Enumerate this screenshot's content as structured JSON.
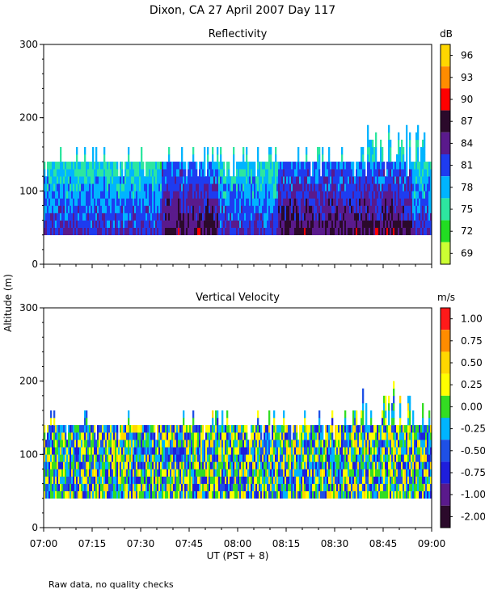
{
  "figure": {
    "title": "Dixon, CA 27 April 2007  Day 117",
    "xlabel": "UT  (PST + 8)",
    "ylabel": "Altitude (m)",
    "note": "Raw data, no quality checks"
  },
  "chart_data": [
    {
      "type": "heatmap",
      "title": "Reflectivity",
      "colorbar_unit": "dB",
      "colorbar_labels": [
        "96",
        "93",
        "90",
        "87",
        "84",
        "81",
        "78",
        "75",
        "72",
        "69"
      ],
      "colorbar_colors": [
        "#ffd700",
        "#ff8c00",
        "#ff0000",
        "#2b0a2b",
        "#5a1a8c",
        "#1e3cf0",
        "#00b4ff",
        "#2de6a0",
        "#22dd22",
        "#ccff33"
      ],
      "xlim": [
        "07:00",
        "09:00"
      ],
      "x_ticks": [
        "07:00",
        "07:15",
        "07:30",
        "07:45",
        "08:00",
        "08:15",
        "08:30",
        "08:45",
        "09:00"
      ],
      "ylim": [
        0,
        300
      ],
      "y_ticks": [
        "0",
        "100",
        "200",
        "300"
      ],
      "data_altitude_range_m": [
        40,
        140
      ],
      "max_echo_altitude_m": 200
    },
    {
      "type": "heatmap",
      "title": "Vertical Velocity",
      "colorbar_unit": "m/s",
      "colorbar_labels": [
        "1.00",
        "0.75",
        "0.50",
        "0.25",
        "0.00",
        "-0.25",
        "-0.50",
        "-0.75",
        "-1.00",
        "-2.00"
      ],
      "colorbar_colors": [
        "#ff1a1a",
        "#ff8c00",
        "#ffd700",
        "#ffff00",
        "#33dd22",
        "#00b4ff",
        "#1e50e6",
        "#1e1edc",
        "#5a1a8c",
        "#2b0a2b"
      ],
      "xlim": [
        "07:00",
        "09:00"
      ],
      "x_ticks": [
        "07:00",
        "07:15",
        "07:30",
        "07:45",
        "08:00",
        "08:15",
        "08:30",
        "08:45",
        "09:00"
      ],
      "ylim": [
        0,
        300
      ],
      "y_ticks": [
        "0",
        "100",
        "200",
        "300"
      ],
      "data_altitude_range_m": [
        40,
        140
      ],
      "max_echo_altitude_m": 200
    }
  ]
}
